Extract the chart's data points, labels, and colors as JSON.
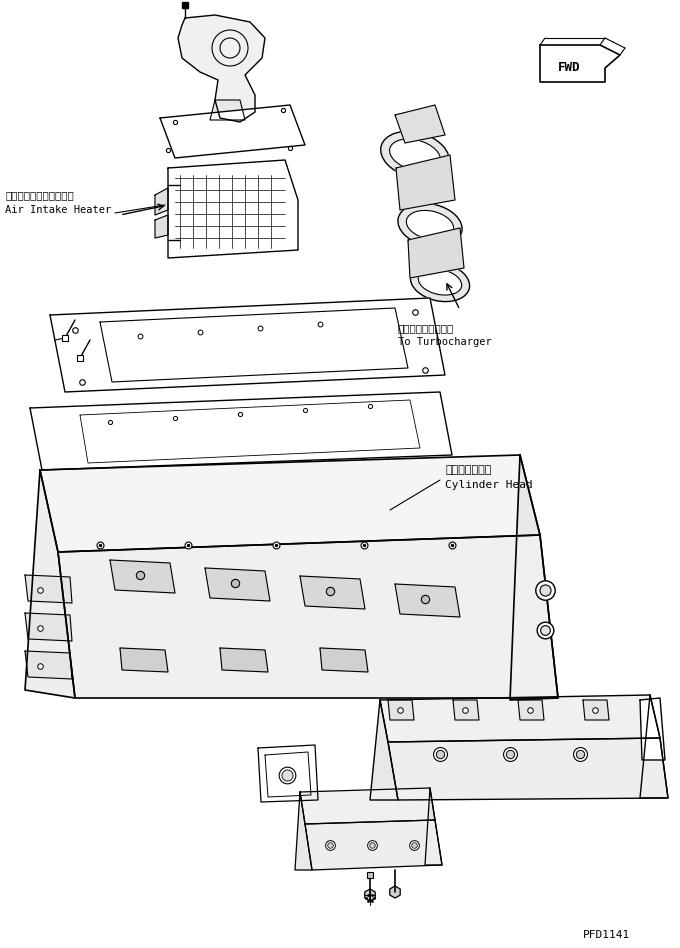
{
  "bg_color": "#ffffff",
  "line_color": "#000000",
  "fig_width": 6.8,
  "fig_height": 9.48,
  "dpi": 100,
  "label_air_intake_jp": "エアーインテークヒータ",
  "label_air_intake_en": "Air Intake Heater",
  "label_turbo_jp": "ターボチャージャヘ",
  "label_turbo_en": "To Turbocharger",
  "label_cyl_jp": "シリンダヘッド",
  "label_cyl_en": "Cylinder Head",
  "label_fwd": "FWD",
  "part_number": "PFD1141"
}
